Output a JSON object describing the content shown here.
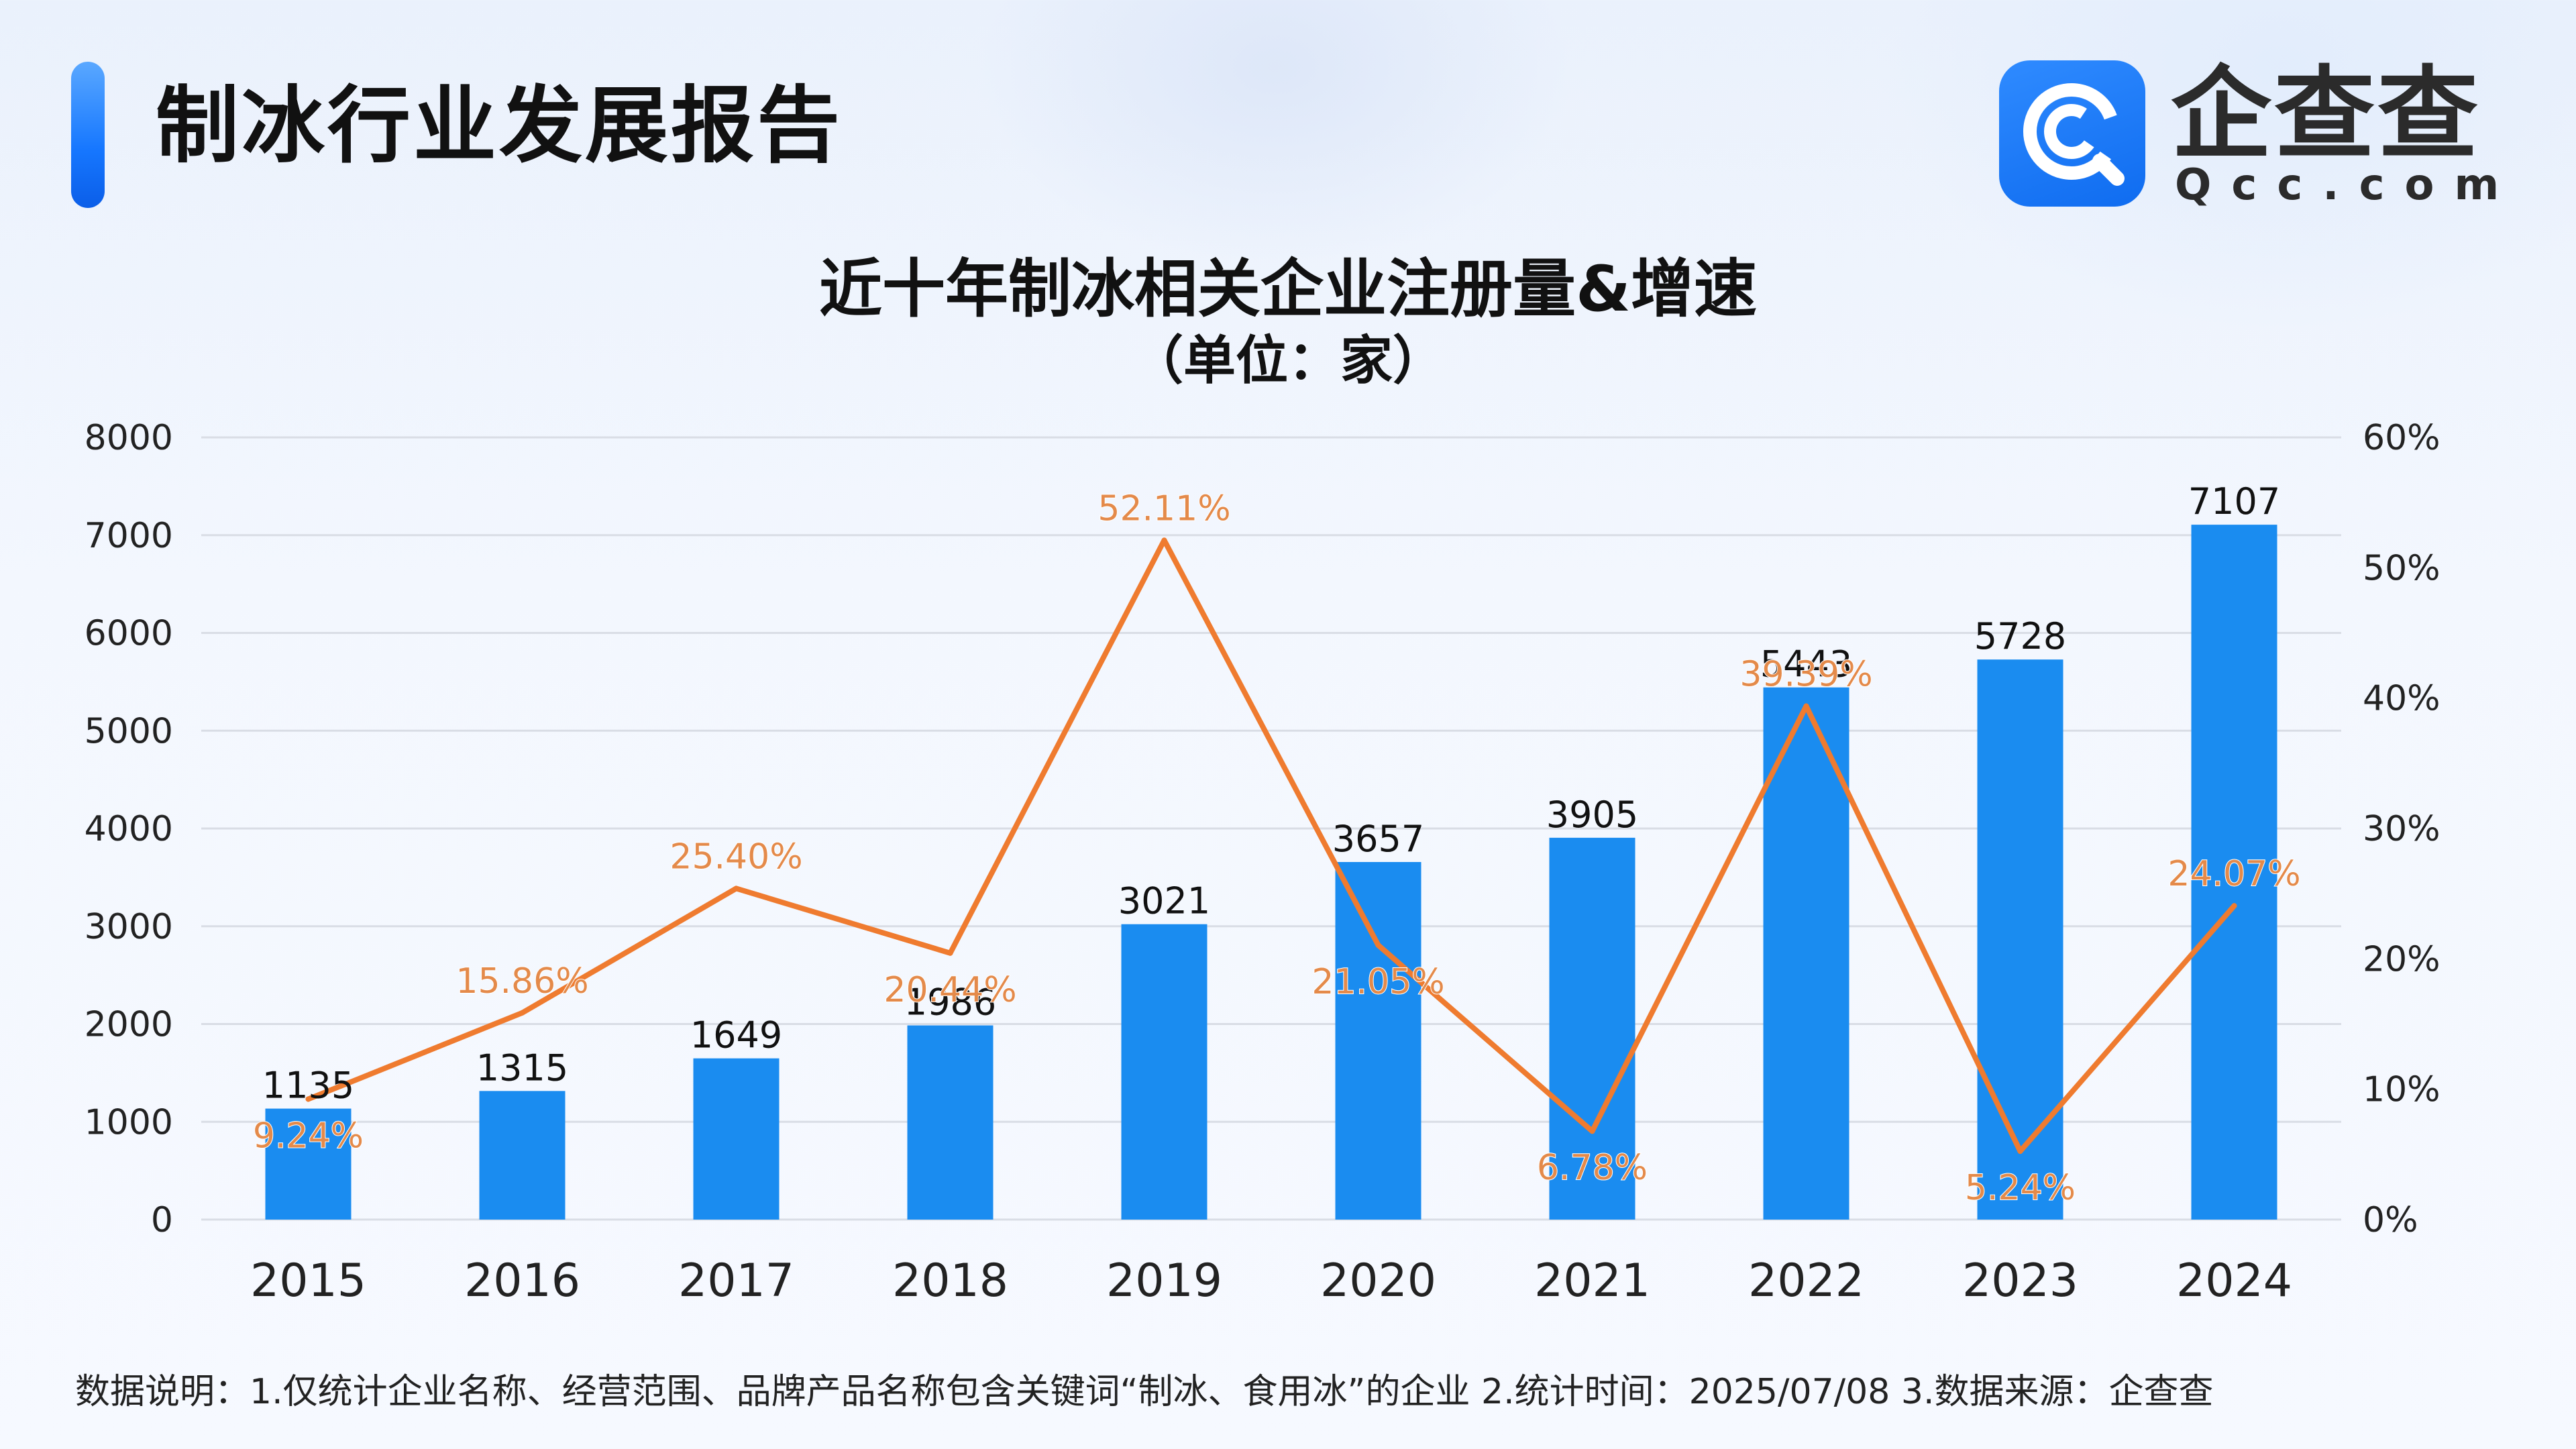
{
  "header": {
    "title": "制冰行业发展报告",
    "logo_text": "企查查",
    "logo_domain": "Qcc.com"
  },
  "colors": {
    "bar": "#1a8cf0",
    "line": "#ef7b2f",
    "line_label": "#e48a4a",
    "grid": "#d9dde5",
    "accent": "#1677ff"
  },
  "chart_data": {
    "type": "bar",
    "title": "近十年制冰相关企业注册量&增速",
    "subtitle": "（单位：家）",
    "categories": [
      "2015",
      "2016",
      "2017",
      "2018",
      "2019",
      "2020",
      "2021",
      "2022",
      "2023",
      "2024"
    ],
    "series": [
      {
        "type": "bar",
        "axis": "left",
        "values": [
          1135,
          1315,
          1649,
          1986,
          3021,
          3657,
          3905,
          5443,
          5728,
          7107
        ],
        "labels": [
          "1135",
          "1315",
          "1649",
          "1986",
          "3021",
          "3657",
          "3905",
          "5443",
          "5728",
          "7107"
        ]
      },
      {
        "type": "line",
        "axis": "right",
        "values": [
          9.24,
          15.86,
          25.4,
          20.44,
          52.11,
          21.05,
          6.78,
          39.39,
          5.24,
          24.07
        ],
        "labels": [
          "9.24%",
          "15.86%",
          "25.40%",
          "20.44%",
          "52.11%",
          "21.05%",
          "6.78%",
          "39.39%",
          "5.24%",
          "24.07%"
        ]
      }
    ],
    "y_left": {
      "range": [
        0,
        8000
      ],
      "ticks": [
        "0",
        "1000",
        "2000",
        "3000",
        "4000",
        "5000",
        "6000",
        "7000",
        "8000"
      ]
    },
    "y_right": {
      "range": [
        0,
        60
      ],
      "ticks": [
        "0%",
        "10%",
        "20%",
        "30%",
        "40%",
        "50%",
        "60%"
      ]
    },
    "grid": true
  },
  "footnote": "数据说明：1.仅统计企业名称、经营范围、品牌产品名称包含关键词“制冰、食用冰”的企业   2.统计时间：2025/07/08    3.数据来源：企查查"
}
